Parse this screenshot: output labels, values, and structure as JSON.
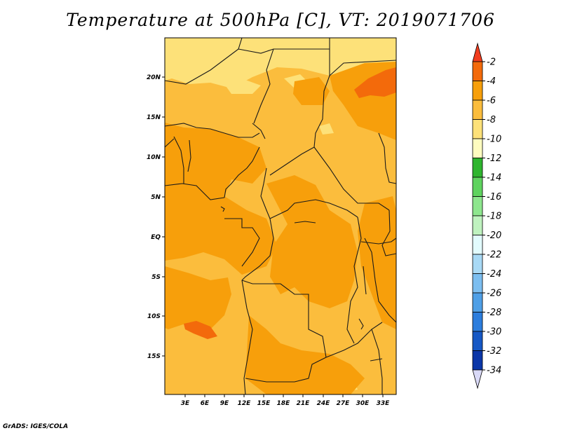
{
  "title": "Temperature at 500hPa [C], VT: 2019071706",
  "credit": "GrADS: IGES/COLA",
  "lat_labels": [
    "20N",
    "15N",
    "10N",
    "5N",
    "EQ",
    "5S",
    "10S",
    "15S"
  ],
  "lon_labels": [
    "3E",
    "6E",
    "9E",
    "12E",
    "15E",
    "18E",
    "21E",
    "24E",
    "27E",
    "30E",
    "33E"
  ],
  "colorbar": {
    "labels": [
      "-2",
      "-4",
      "-6",
      "-8",
      "-10",
      "-12",
      "-14",
      "-16",
      "-18",
      "-20",
      "-22",
      "-24",
      "-26",
      "-28",
      "-30",
      "-32",
      "-34"
    ],
    "colors": [
      "#f03c1e",
      "#f36a0b",
      "#f79f0b",
      "#fbbd3d",
      "#fde179",
      "#fefcbf",
      "#2eb52e",
      "#5fd35f",
      "#8ee68e",
      "#bff2bf",
      "#e2fbfd",
      "#a8d9f5",
      "#7cbef0",
      "#4f9fe6",
      "#2c7ddd",
      "#1658c5",
      "#0b36a8",
      "#071a70",
      "#d9d9f7"
    ]
  },
  "map_colors": {
    "light": "#fde179",
    "mid": "#fbbd3d",
    "dark": "#f79f0b",
    "red": "#f36a0b",
    "border": "#1a1a1a"
  }
}
